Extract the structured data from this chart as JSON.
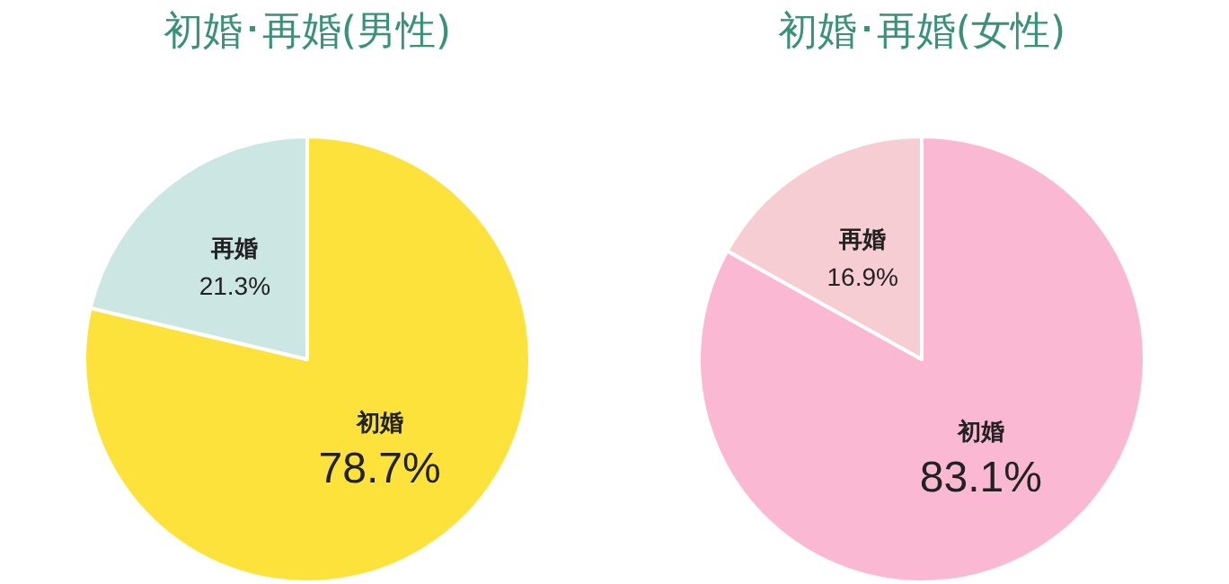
{
  "chart_data": [
    {
      "type": "pie",
      "title": "初婚･再婚(男性)",
      "categories": [
        "初婚",
        "再婚"
      ],
      "values": [
        78.7,
        21.3
      ],
      "colors": [
        "#fde23c",
        "#cce6e3"
      ],
      "value_labels": [
        "78.7%",
        "21.3%"
      ]
    },
    {
      "type": "pie",
      "title": "初婚･再婚(女性)",
      "categories": [
        "初婚",
        "再婚"
      ],
      "values": [
        83.1,
        16.9
      ],
      "colors": [
        "#fbb8d2",
        "#f6cdd3"
      ],
      "value_labels": [
        "83.1%",
        "16.9%"
      ]
    }
  ]
}
